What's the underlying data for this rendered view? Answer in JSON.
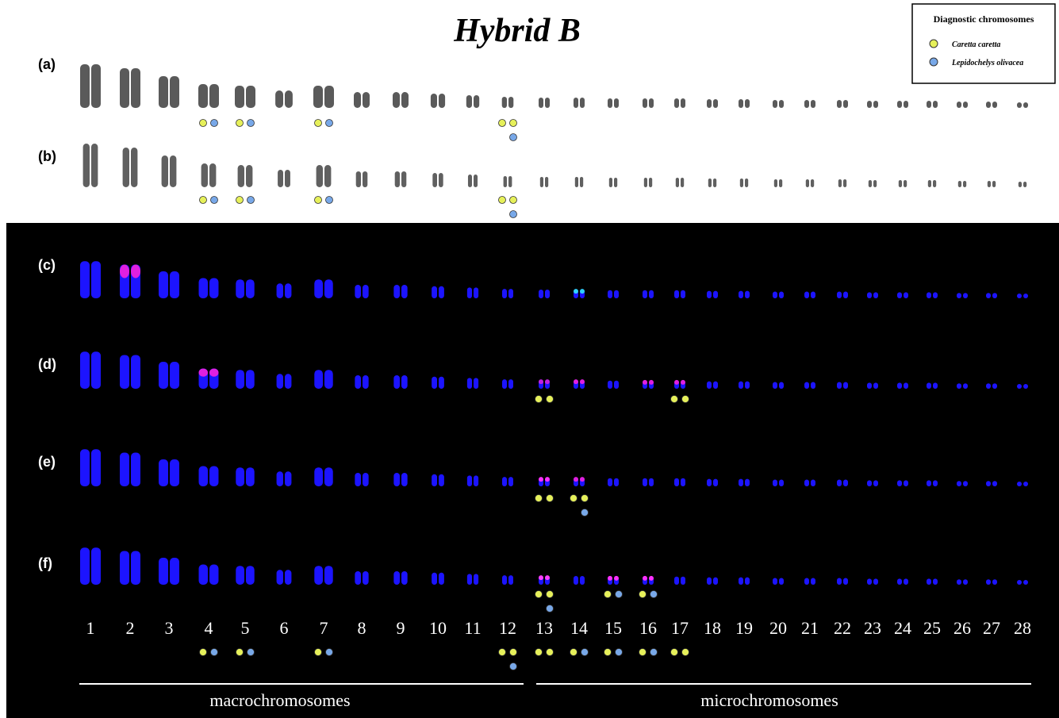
{
  "title": "Hybrid B",
  "legend": {
    "title": "Diagnostic chromosomes",
    "items": [
      "Caretta caretta",
      "Lepidochelys olivacea"
    ]
  },
  "panels": [
    "(a)",
    "(b)",
    "(c)",
    "(d)",
    "(e)",
    "(f)"
  ],
  "chromosomes": [
    "1",
    "2",
    "3",
    "4",
    "5",
    "6",
    "7",
    "8",
    "9",
    "10",
    "11",
    "12",
    "13",
    "14",
    "15",
    "16",
    "17",
    "18",
    "19",
    "20",
    "21",
    "22",
    "23",
    "24",
    "25",
    "26",
    "27",
    "28"
  ],
  "groups": [
    "macrochromosomes",
    "microchromosomes"
  ]
}
